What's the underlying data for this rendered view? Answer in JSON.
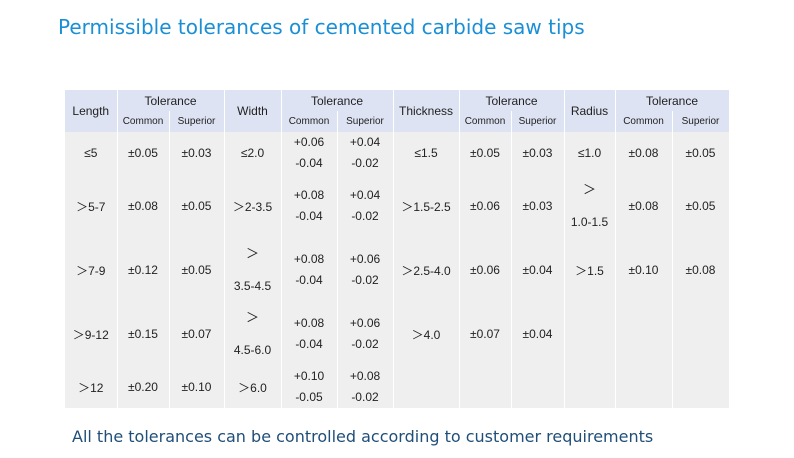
{
  "title": "Permissible tolerances of cemented carbide saw tips",
  "table": {
    "headers": {
      "length": "Length",
      "tolerance": "Tolerance",
      "common": "Common",
      "superior": "Superior",
      "width": "Width",
      "thickness": "Thickness",
      "radius": "Radius"
    },
    "rows": [
      {
        "length": "≤5",
        "l_common": "±0.05",
        "l_superior": "±0.03",
        "width": "≤2.0",
        "w_common": [
          "+0.06",
          "-0.04"
        ],
        "w_superior": [
          "+0.04",
          "-0.02"
        ],
        "thickness": "≤1.5",
        "t_common": "±0.05",
        "t_superior": "±0.03",
        "radius": "≤1.0",
        "r_common": "±0.08",
        "r_superior": "±0.05"
      },
      {
        "length": "＞5-7",
        "l_common": "±0.08",
        "l_superior": "±0.05",
        "width": "＞2-3.5",
        "w_common": [
          "+0.08",
          "-0.04"
        ],
        "w_superior": [
          "+0.04",
          "-0.02"
        ],
        "thickness": "＞1.5-2.5",
        "t_common": "±0.06",
        "t_superior": "±0.03",
        "radius": [
          "＞",
          "1.0-1.5"
        ],
        "r_common": "±0.08",
        "r_superior": "±0.05"
      },
      {
        "length": "＞7-9",
        "l_common": "±0.12",
        "l_superior": "±0.05",
        "width": [
          "＞",
          "3.5-4.5"
        ],
        "w_common": [
          "+0.08",
          "-0.04"
        ],
        "w_superior": [
          "+0.06",
          "-0.02"
        ],
        "thickness": "＞2.5-4.0",
        "t_common": "±0.06",
        "t_superior": "±0.04",
        "radius": "＞1.5",
        "r_common": "±0.10",
        "r_superior": "±0.08"
      },
      {
        "length": "＞9-12",
        "l_common": "±0.15",
        "l_superior": "±0.07",
        "width": [
          "＞",
          "4.5-6.0"
        ],
        "w_common": [
          "+0.08",
          "-0.04"
        ],
        "w_superior": [
          "+0.06",
          "-0.02"
        ],
        "thickness": "＞4.0",
        "t_common": "±0.07",
        "t_superior": "±0.04",
        "radius": "",
        "r_common": "",
        "r_superior": ""
      },
      {
        "length": "＞12",
        "l_common": "±0.20",
        "l_superior": "±0.10",
        "width": "＞6.0",
        "w_common": [
          "+0.10",
          "-0.05"
        ],
        "w_superior": [
          "+0.08",
          "-0.02"
        ],
        "thickness": "",
        "t_common": "",
        "t_superior": "",
        "radius": "",
        "r_common": "",
        "r_superior": ""
      }
    ]
  },
  "footer": "All the tolerances can be controlled according to customer requirements"
}
